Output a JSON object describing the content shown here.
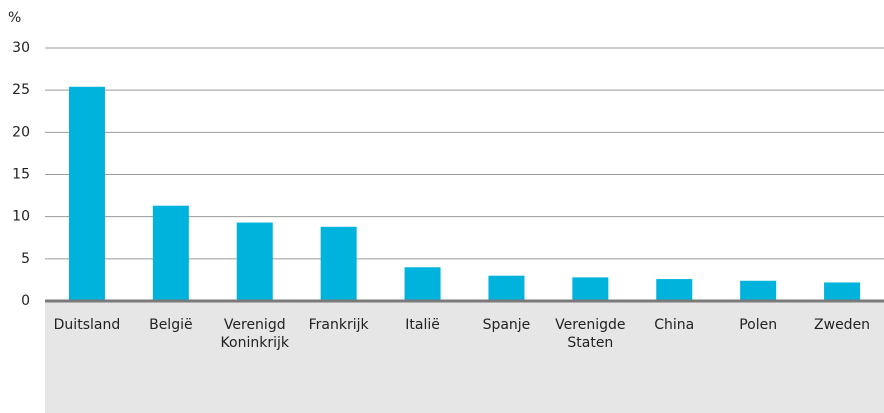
{
  "chart_data": {
    "type": "bar",
    "y_label": "%",
    "categories": [
      "Duitsland",
      "België",
      "Verenigd Koninkrijk",
      "Frankrijk",
      "Italië",
      "Spanje",
      "Verenigde Staten",
      "China",
      "Polen",
      "Zweden"
    ],
    "values": [
      25.4,
      11.3,
      9.3,
      8.8,
      4.0,
      3.0,
      2.8,
      2.6,
      2.4,
      2.2
    ],
    "color": "#00b3dc",
    "ylim": [
      0,
      30
    ],
    "yticks": [
      0,
      5,
      10,
      15,
      20,
      25,
      30
    ],
    "grid": true
  }
}
